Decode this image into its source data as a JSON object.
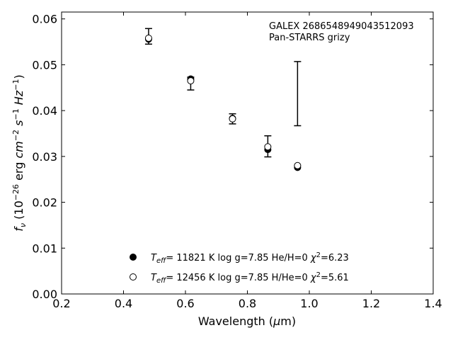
{
  "chart_data": {
    "type": "scatter",
    "title": "",
    "xlabel": "Wavelength (μm)",
    "ylabel": "f_ν (10^−26 erg cm^−2 s^−1 Hz^−1)",
    "xlim": [
      0.2,
      1.4
    ],
    "ylim": [
      0.0,
      0.0615
    ],
    "x_ticks": [
      "0.2",
      "0.4",
      "0.6",
      "0.8",
      "1.0",
      "1.2",
      "1.4"
    ],
    "y_ticks": [
      "0.00",
      "0.01",
      "0.02",
      "0.03",
      "0.04",
      "0.05",
      "0.06"
    ],
    "annotation": [
      "GALEX 2686548949043512093",
      "Pan-STARRS grizy"
    ],
    "observed": {
      "x": [
        0.481,
        0.617,
        0.752,
        0.866,
        0.962
      ],
      "y": [
        0.0562,
        0.0459,
        0.0382,
        0.0322,
        0.0437
      ],
      "yerr": [
        0.0017,
        0.0014,
        0.0011,
        0.0023,
        0.007
      ]
    },
    "series": [
      {
        "name": "T_eff= 11821 K  log g=7.85  He/H=0  χ²=6.23",
        "marker": "filled",
        "x": [
          0.481,
          0.617,
          0.752,
          0.866,
          0.962
        ],
        "y": [
          0.0556,
          0.0469,
          0.0383,
          0.0315,
          0.0276
        ]
      },
      {
        "name": "T_eff= 12456 K  log g=7.85  H/He=0  χ²=5.61",
        "marker": "open",
        "x": [
          0.481,
          0.617,
          0.752,
          0.866,
          0.962
        ],
        "y": [
          0.0558,
          0.0465,
          0.0382,
          0.0321,
          0.028
        ]
      }
    ],
    "legend": {
      "position": "lower-center",
      "entries": [
        {
          "teff_label": "= 11821 K  log g=7.85  He/H=0  ",
          "chi_label": "=6.23"
        },
        {
          "teff_label": "= 12456 K  log g=7.85  H/He=0  ",
          "chi_label": "=5.61"
        }
      ]
    },
    "grid": false
  }
}
